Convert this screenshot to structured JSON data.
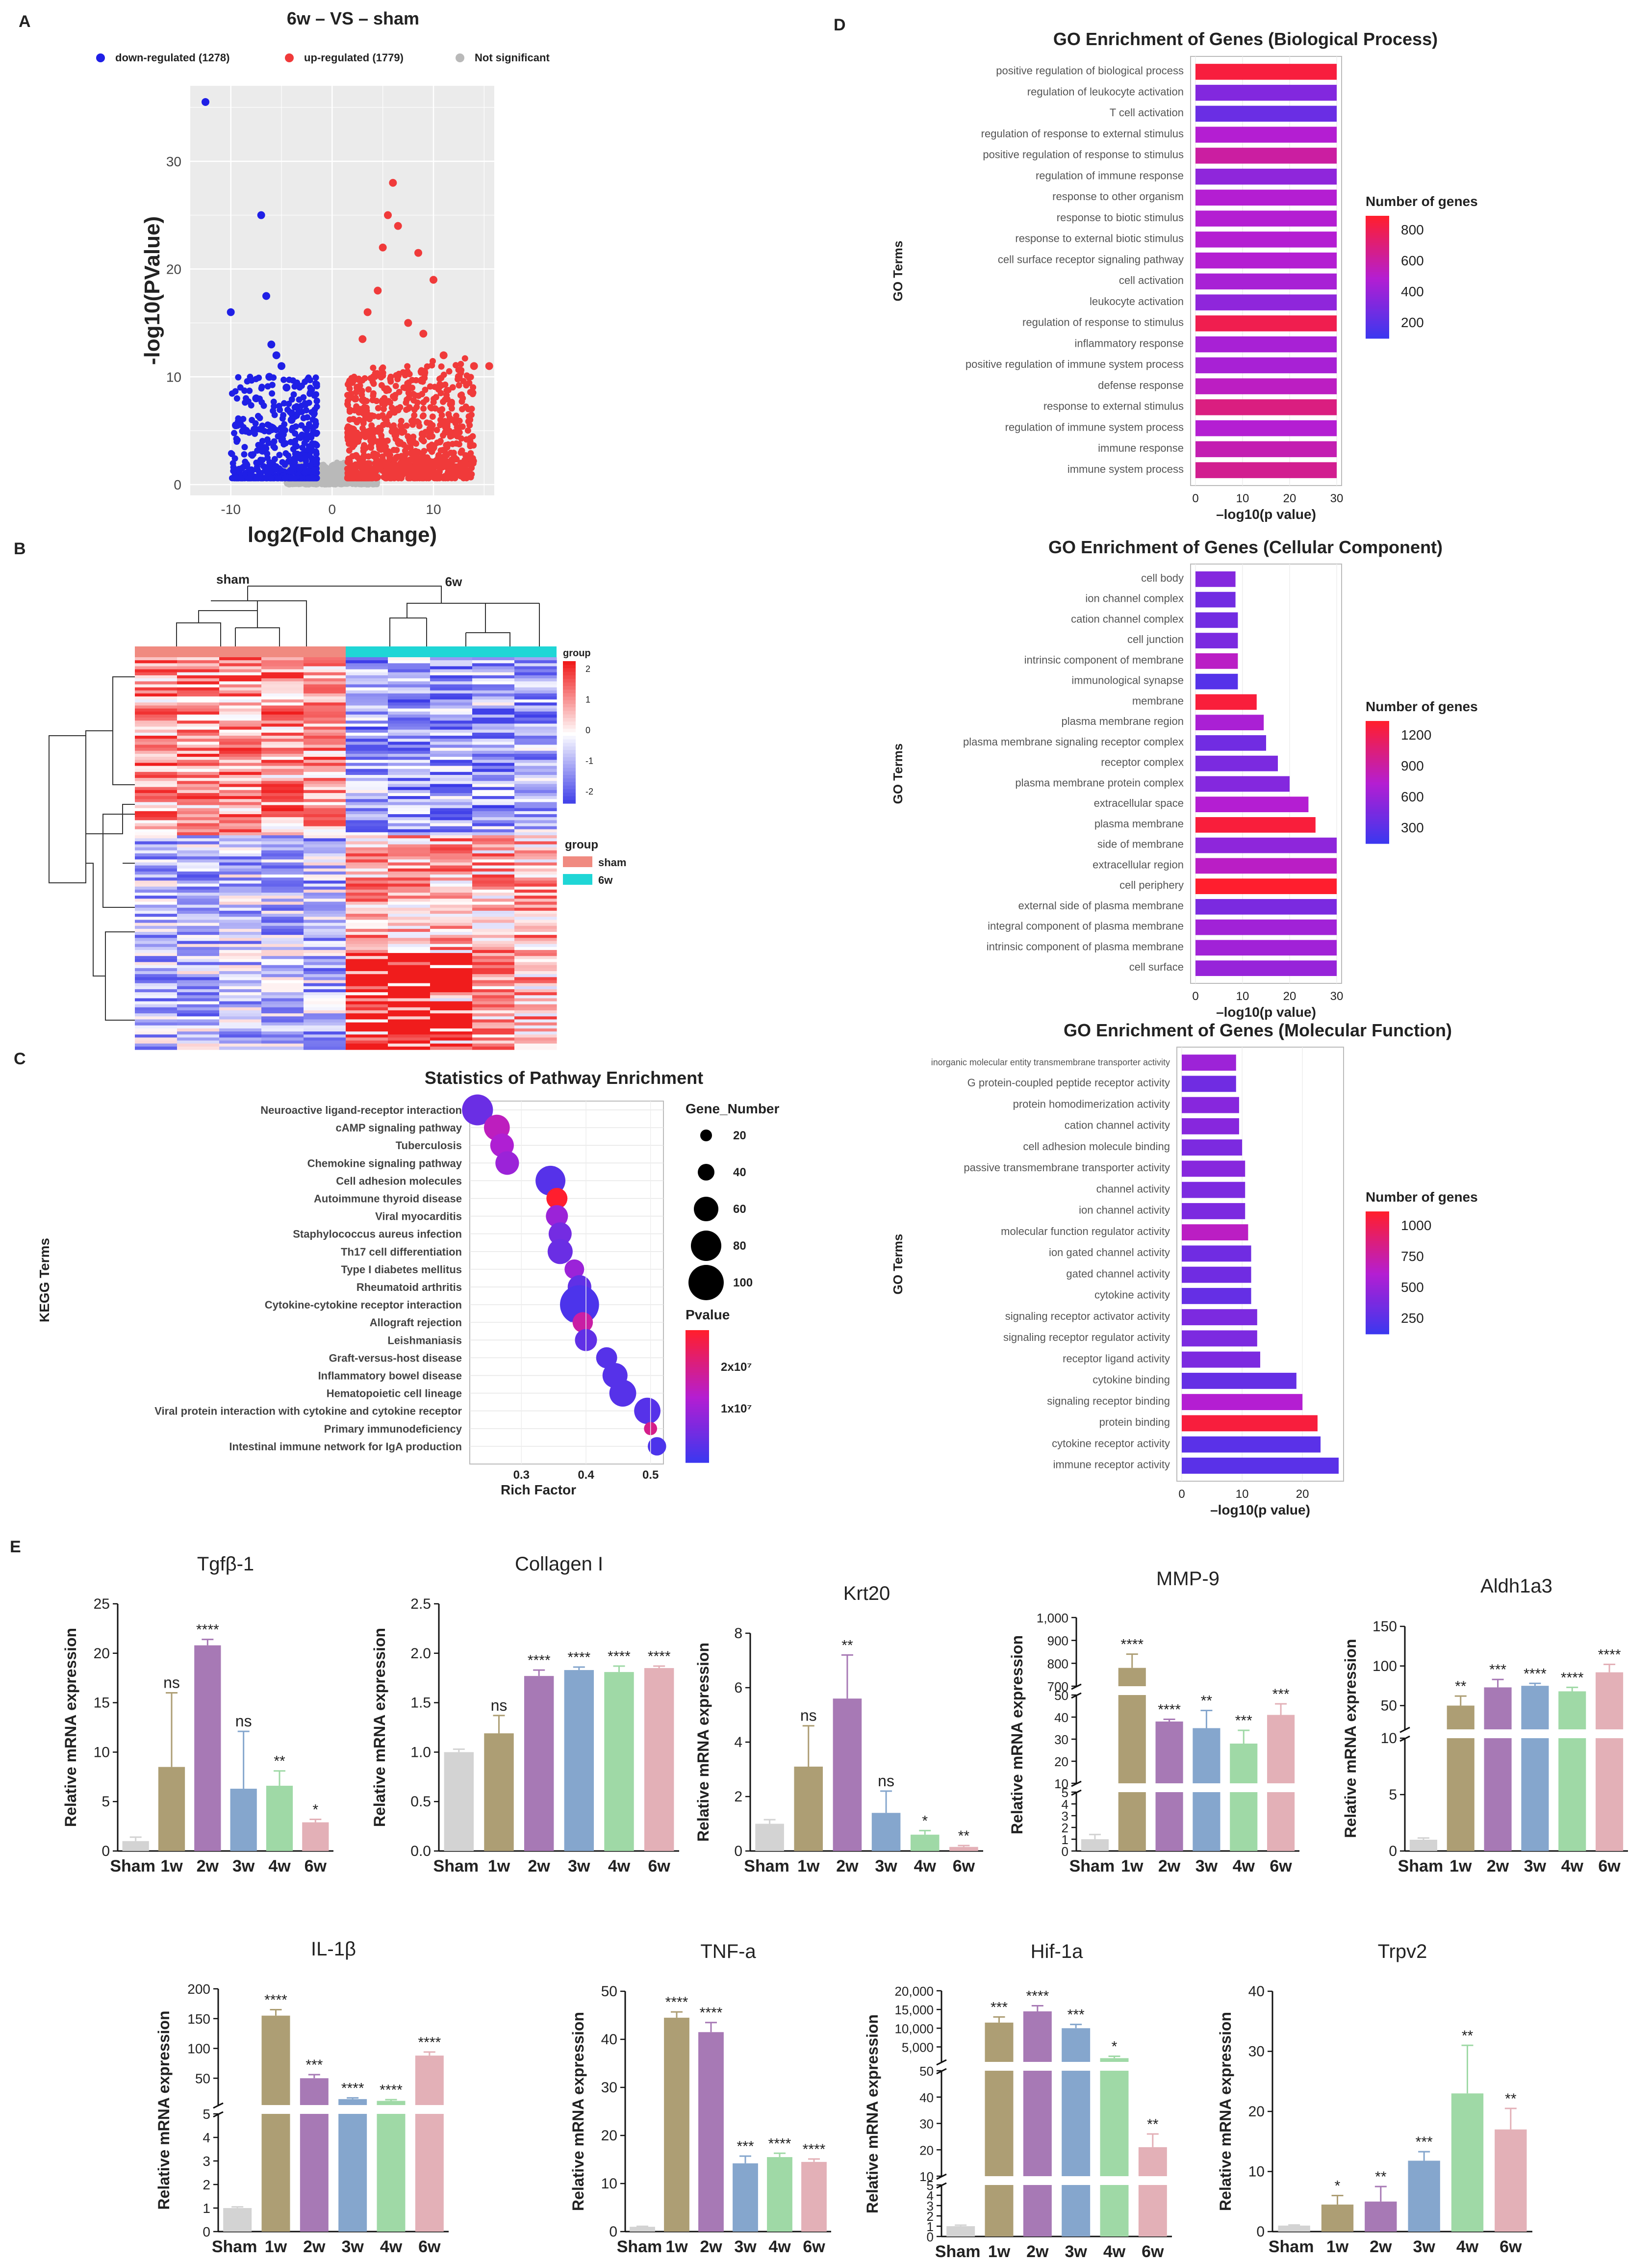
{
  "panels": [
    "A",
    "B",
    "C",
    "D",
    "E"
  ],
  "colors": {
    "down": "#1f1fe6",
    "up": "#f03a3a",
    "ns": "#b9b9b9",
    "sham": "#f08a80",
    "w6": "#1fd6d6",
    "groups": [
      "#d3d3d3",
      "#ad9e74",
      "#a779b5",
      "#85a6cd",
      "#9fd9a6",
      "#e3b0b7"
    ]
  },
  "volcano": {
    "title": "6w – VS – sham",
    "legend": [
      "down-regulated (1278)",
      "up-regulated (1779)",
      "Not significant"
    ],
    "xlabel": "log2(Fold Change)",
    "ylabel": "-log10(PValue)",
    "xticks": [
      "-10",
      "0",
      "10"
    ],
    "yticks": [
      "0",
      "10",
      "20",
      "30"
    ]
  },
  "heatmap": {
    "sham_label": "sham",
    "w6_label": "6w",
    "scale_title": "group",
    "scale_ticks": [
      "2",
      "1",
      "0",
      "-1",
      "-2"
    ],
    "legend_title": "group",
    "legend_items": [
      "sham",
      "6w"
    ]
  },
  "kegg": {
    "title": "Statistics of Pathway Enrichment",
    "ylabel": "KEGG Terms",
    "xlabel": "Rich Factor",
    "size_title": "Gene_Number",
    "size_ticks": [
      "20",
      "40",
      "60",
      "80",
      "100"
    ],
    "color_title": "Pvalue",
    "color_ticks": [
      "2x10⁷",
      "1x10⁷"
    ],
    "xticks": [
      "0.3",
      "0.4",
      "0.5"
    ]
  },
  "go_bp": {
    "title": "GO Enrichment of Genes (Biological Process)",
    "ylabel": "GO Terms",
    "xlabel": "–log10(p value)",
    "legend_title": "Number of genes",
    "legend_ticks": [
      "800",
      "600",
      "400",
      "200"
    ],
    "xticks": [
      "0",
      "10",
      "20",
      "30"
    ]
  },
  "go_cc": {
    "title": "GO Enrichment of Genes (Cellular Component)",
    "ylabel": "GO Terms",
    "xlabel": "–log10(p value)",
    "legend_title": "Number of genes",
    "legend_ticks": [
      "1200",
      "900",
      "600",
      "300"
    ],
    "xticks": [
      "0",
      "10",
      "20",
      "30"
    ]
  },
  "go_mf": {
    "title": "GO Enrichment of Genes (Molecular Function)",
    "ylabel": "GO Terms",
    "xlabel": "–log10(p value)",
    "legend_title": "Number of genes",
    "legend_ticks": [
      "1000",
      "750",
      "500",
      "250"
    ],
    "xticks": [
      "0",
      "10",
      "20"
    ]
  },
  "qpcr": {
    "ylabel": "Relative mRNA expression",
    "groups": [
      "Sham",
      "1w",
      "2w",
      "3w",
      "4w",
      "6w"
    ]
  },
  "chart_data": [
    {
      "id": "volcano",
      "type": "scatter",
      "title": "6w – VS – sham",
      "xlabel": "log2(Fold Change)",
      "ylabel": "-log10(PValue)",
      "xlim": [
        -14,
        16
      ],
      "ylim": [
        -1,
        37
      ],
      "series": [
        {
          "name": "down-regulated (1278)",
          "x": [
            -12.5,
            -10,
            -9.5,
            -7,
            -6.5,
            -6,
            -5.5,
            -6.2,
            -5,
            -4.5,
            -7.5,
            -8.5,
            -4
          ],
          "y": [
            35.5,
            16,
            5.5,
            25,
            17.5,
            13,
            12,
            10,
            11,
            9,
            8,
            5,
            6
          ]
        },
        {
          "name": "up-regulated (1779)",
          "x": [
            6,
            5.5,
            6.5,
            8.5,
            10,
            5,
            4.5,
            3.5,
            3,
            14,
            7.5,
            9,
            11,
            2.5,
            12.5,
            15.5
          ],
          "y": [
            28,
            25,
            24,
            21.5,
            19,
            22,
            18,
            16,
            13.5,
            11,
            15,
            14,
            12,
            9,
            10,
            11
          ]
        },
        {
          "name": "Not significant",
          "x": [],
          "y": []
        }
      ]
    },
    {
      "id": "heatmap",
      "type": "heatmap",
      "groups": [
        "sham",
        "6w"
      ],
      "color_scale": [
        -2,
        2
      ]
    },
    {
      "id": "kegg",
      "type": "scatter",
      "title": "Statistics of Pathway Enrichment",
      "xlabel": "Rich Factor",
      "ylabel": "KEGG Terms",
      "xlim": [
        0.22,
        0.52
      ],
      "categories": [
        "Neuroactive ligand-receptor interaction",
        "cAMP signaling pathway",
        "Tuberculosis",
        "Chemokine signaling pathway",
        "Cell adhesion molecules",
        "Autoimmune thyroid disease",
        "Viral myocarditis",
        "Staphylococcus aureus infection",
        "Th17 cell differentiation",
        "Type I diabetes mellitus",
        "Rheumatoid arthritis",
        "Cytokine-cytokine receptor interaction",
        "Allograft rejection",
        "Leishmaniasis",
        "Graft-versus-host disease",
        "Inflammatory bowel disease",
        "Hematopoietic cell lineage",
        "Viral protein interaction with cytokine and cytokine receptor",
        "Primary immunodeficiency",
        "Intestinal immune network for IgA production"
      ],
      "x": [
        0.232,
        0.262,
        0.27,
        0.278,
        0.345,
        0.355,
        0.355,
        0.36,
        0.36,
        0.382,
        0.39,
        0.39,
        0.395,
        0.4,
        0.432,
        0.445,
        0.457,
        0.495,
        0.5,
        0.51
      ],
      "gene_number": [
        60,
        38,
        30,
        30,
        55,
        22,
        25,
        28,
        35,
        18,
        30,
        105,
        20,
        25,
        22,
        35,
        42,
        40,
        5,
        15
      ],
      "pvalue_1e7": [
        0.5,
        1.4,
        1.2,
        1.0,
        0.3,
        2.5,
        1.0,
        0.6,
        0.5,
        1.0,
        0.4,
        0.2,
        1.6,
        0.4,
        0.3,
        0.3,
        0.3,
        0.3,
        1.8,
        0.2
      ]
    },
    {
      "id": "go_bp",
      "type": "bar",
      "orientation": "horizontal",
      "title": "GO Enrichment of Genes (Biological Process)",
      "xlabel": "–log10(p value)",
      "ylabel": "GO Terms",
      "xlim": [
        0,
        30
      ],
      "categories": [
        "positive regulation of biological process",
        "regulation of leukocyte activation",
        "T cell activation",
        "regulation of response to external stimulus",
        "positive regulation of response to stimulus",
        "regulation of immune response",
        "response to other organism",
        "response to biotic stimulus",
        "response to external biotic stimulus",
        "cell surface receptor signaling pathway",
        "cell activation",
        "leukocyte activation",
        "regulation of response to stimulus",
        "inflammatory response",
        "positive regulation of immune system process",
        "defense response",
        "response to external stimulus",
        "regulation of immune system process",
        "immune response",
        "immune system process"
      ],
      "values": [
        30,
        30,
        30,
        30,
        30,
        30,
        30,
        30,
        30,
        30,
        30,
        30,
        30,
        30,
        30,
        30,
        30,
        30,
        30,
        30
      ],
      "gene_counts": [
        950,
        300,
        200,
        500,
        650,
        350,
        500,
        500,
        500,
        500,
        450,
        350,
        900,
        450,
        450,
        550,
        750,
        500,
        600,
        700
      ]
    },
    {
      "id": "go_cc",
      "type": "bar",
      "orientation": "horizontal",
      "title": "GO Enrichment of Genes (Cellular Component)",
      "xlabel": "–log10(p value)",
      "ylabel": "GO Terms",
      "xlim": [
        0,
        30
      ],
      "categories": [
        "cell body",
        "ion channel complex",
        "cation channel complex",
        "cell junction",
        "intrinsic component of membrane",
        "immunological synapse",
        "membrane",
        "plasma membrane region",
        "plasma membrane signaling receptor complex",
        "receptor complex",
        "plasma membrane protein complex",
        "extracellular space",
        "plasma membrane",
        "side of membrane",
        "extracellular region",
        "cell periphery",
        "external side of plasma membrane",
        "integral component of plasma membrane",
        "intrinsic component of plasma membrane",
        "cell surface"
      ],
      "values": [
        8.5,
        8.5,
        9,
        9,
        9,
        9,
        13,
        14.5,
        15,
        17.5,
        20,
        24,
        25.5,
        30,
        30,
        30,
        30,
        30,
        30,
        30
      ],
      "gene_counts": [
        400,
        300,
        300,
        350,
        700,
        150,
        1250,
        600,
        300,
        350,
        400,
        650,
        1250,
        450,
        700,
        1300,
        350,
        550,
        550,
        500
      ]
    },
    {
      "id": "go_mf",
      "type": "bar",
      "orientation": "horizontal",
      "title": "GO Enrichment of Genes (Molecular Function)",
      "xlabel": "–log10(p value)",
      "ylabel": "GO Terms",
      "xlim": [
        0,
        26
      ],
      "categories": [
        "inorganic molecular entity transmembrane transporter activity",
        "G protein-coupled peptide receptor activity",
        "protein homodimerization activity",
        "cation channel activity",
        "cell adhesion molecule binding",
        "passive transmembrane transporter activity",
        "channel activity",
        "ion channel activity",
        "molecular function regulator activity",
        "ion gated channel activity",
        "gated channel activity",
        "cytokine activity",
        "signaling receptor activator activity",
        "signaling receptor regulator activity",
        "receptor ligand activity",
        "cytokine binding",
        "signaling receptor binding",
        "protein binding",
        "cytokine receptor activity",
        "immune receptor activity"
      ],
      "values": [
        9,
        9,
        9.5,
        9.5,
        10,
        10.5,
        10.5,
        10.5,
        11,
        11.5,
        11.5,
        11.5,
        12.5,
        12.5,
        13,
        19,
        20,
        22.5,
        23,
        26
      ],
      "gene_counts": [
        450,
        250,
        350,
        350,
        300,
        350,
        300,
        300,
        600,
        250,
        250,
        200,
        300,
        300,
        300,
        200,
        550,
        1050,
        150,
        150
      ]
    },
    {
      "id": "tgfb1",
      "type": "bar",
      "title": "Tgfβ-1",
      "categories": [
        "Sham",
        "1w",
        "2w",
        "3w",
        "4w",
        "6w"
      ],
      "values": [
        1.0,
        8.5,
        20.8,
        6.3,
        6.6,
        2.9
      ],
      "errors": [
        0.4,
        7.5,
        0.6,
        5.8,
        1.5,
        0.3
      ],
      "significance": [
        "",
        "ns",
        "****",
        "ns",
        "**",
        "*"
      ],
      "ylim": [
        0,
        25
      ],
      "yticks": [
        "0",
        "5",
        "10",
        "15",
        "20",
        "25"
      ]
    },
    {
      "id": "collagen1",
      "type": "bar",
      "title": "Collagen I",
      "categories": [
        "Sham",
        "1w",
        "2w",
        "3w",
        "4w",
        "6w"
      ],
      "values": [
        1.0,
        1.19,
        1.77,
        1.83,
        1.81,
        1.85
      ],
      "errors": [
        0.03,
        0.18,
        0.06,
        0.03,
        0.06,
        0.02
      ],
      "significance": [
        "",
        "ns",
        "****",
        "****",
        "****",
        "****"
      ],
      "ylim": [
        0,
        2.5
      ],
      "yticks": [
        "0.0",
        "0.5",
        "1.0",
        "1.5",
        "2.0",
        "2.5"
      ]
    },
    {
      "id": "krt20",
      "type": "bar",
      "title": "Krt20",
      "categories": [
        "Sham",
        "1w",
        "2w",
        "3w",
        "4w",
        "6w"
      ],
      "values": [
        1.0,
        3.1,
        5.6,
        1.4,
        0.6,
        0.15
      ],
      "errors": [
        0.15,
        1.5,
        1.6,
        0.8,
        0.15,
        0.05
      ],
      "significance": [
        "",
        "ns",
        "**",
        "ns",
        "*",
        "**"
      ],
      "ylim": [
        0,
        8
      ],
      "yticks": [
        "0",
        "2",
        "4",
        "6",
        "8"
      ]
    },
    {
      "id": "mmp9",
      "type": "bar",
      "title": "MMP-9",
      "categories": [
        "Sham",
        "1w",
        "2w",
        "3w",
        "4w",
        "6w"
      ],
      "values": [
        1.0,
        780,
        38,
        35,
        28,
        41
      ],
      "errors": [
        0.4,
        60,
        1,
        8,
        6,
        5
      ],
      "significance": [
        "",
        "****",
        "****",
        "**",
        "***",
        "***"
      ],
      "axis_breaks": [
        [
          5,
          10
        ],
        [
          50,
          700
        ]
      ],
      "yticks": [
        "0",
        "1",
        "2",
        "3",
        "4",
        "5",
        "10",
        "20",
        "30",
        "40",
        "50",
        "700",
        "800",
        "900",
        "1,000"
      ]
    },
    {
      "id": "aldh1a3",
      "type": "bar",
      "title": "Aldh1a3",
      "categories": [
        "Sham",
        "1w",
        "2w",
        "3w",
        "4w",
        "6w"
      ],
      "values": [
        1.0,
        50,
        73,
        75,
        68,
        92
      ],
      "errors": [
        0.15,
        12,
        10,
        3,
        5,
        10
      ],
      "significance": [
        "",
        "**",
        "***",
        "****",
        "****",
        "****"
      ],
      "axis_breaks": [
        [
          10,
          20
        ]
      ],
      "yticks": [
        "0",
        "5",
        "10",
        "50",
        "100",
        "150"
      ]
    },
    {
      "id": "il1b",
      "type": "bar",
      "title": "IL-1β",
      "categories": [
        "Sham",
        "1w",
        "2w",
        "3w",
        "4w",
        "6w"
      ],
      "values": [
        1.0,
        155,
        50,
        15,
        12,
        88
      ],
      "errors": [
        0.05,
        10,
        6,
        2,
        2,
        6
      ],
      "significance": [
        "",
        "****",
        "***",
        "****",
        "****",
        "****"
      ],
      "axis_breaks": [
        [
          5,
          20
        ]
      ],
      "yticks": [
        "0",
        "1",
        "2",
        "3",
        "4",
        "5",
        "50",
        "100",
        "150",
        "200"
      ]
    },
    {
      "id": "tnfa",
      "type": "bar",
      "title": "TNF-a",
      "categories": [
        "Sham",
        "1w",
        "2w",
        "3w",
        "4w",
        "6w"
      ],
      "values": [
        1.0,
        44.5,
        41.5,
        14.2,
        15.5,
        14.5
      ],
      "errors": [
        0.1,
        1.2,
        2,
        1.5,
        0.8,
        0.6
      ],
      "significance": [
        "",
        "****",
        "****",
        "***",
        "****",
        "****"
      ],
      "ylim": [
        0,
        50
      ],
      "yticks": [
        "0",
        "10",
        "20",
        "30",
        "40",
        "50"
      ]
    },
    {
      "id": "hif1a",
      "type": "bar",
      "title": "Hif-1a",
      "categories": [
        "Sham",
        "1w",
        "2w",
        "3w",
        "4w",
        "6w"
      ],
      "values": [
        1.0,
        11500,
        14500,
        10000,
        2000,
        21
      ],
      "errors": [
        0.1,
        1500,
        1500,
        1000,
        500,
        5
      ],
      "significance": [
        "",
        "***",
        "****",
        "***",
        "*",
        "**"
      ],
      "axis_breaks": [
        [
          5,
          10
        ],
        [
          50,
          1000
        ]
      ],
      "yticks": [
        "0",
        "1",
        "2",
        "3",
        "4",
        "5",
        "10",
        "20",
        "30",
        "40",
        "50",
        "5,000",
        "10,000",
        "15,000",
        "20,000"
      ]
    },
    {
      "id": "trpv2",
      "type": "bar",
      "title": "Trpv2",
      "categories": [
        "Sham",
        "1w",
        "2w",
        "3w",
        "4w",
        "6w"
      ],
      "values": [
        1.0,
        4.5,
        5.0,
        11.8,
        23,
        17
      ],
      "errors": [
        0.1,
        1.5,
        2.5,
        1.5,
        8,
        3.5
      ],
      "significance": [
        "",
        "*",
        "**",
        "***",
        "**",
        "**"
      ],
      "ylim": [
        0,
        40
      ],
      "yticks": [
        "0",
        "10",
        "20",
        "30",
        "40"
      ]
    }
  ]
}
